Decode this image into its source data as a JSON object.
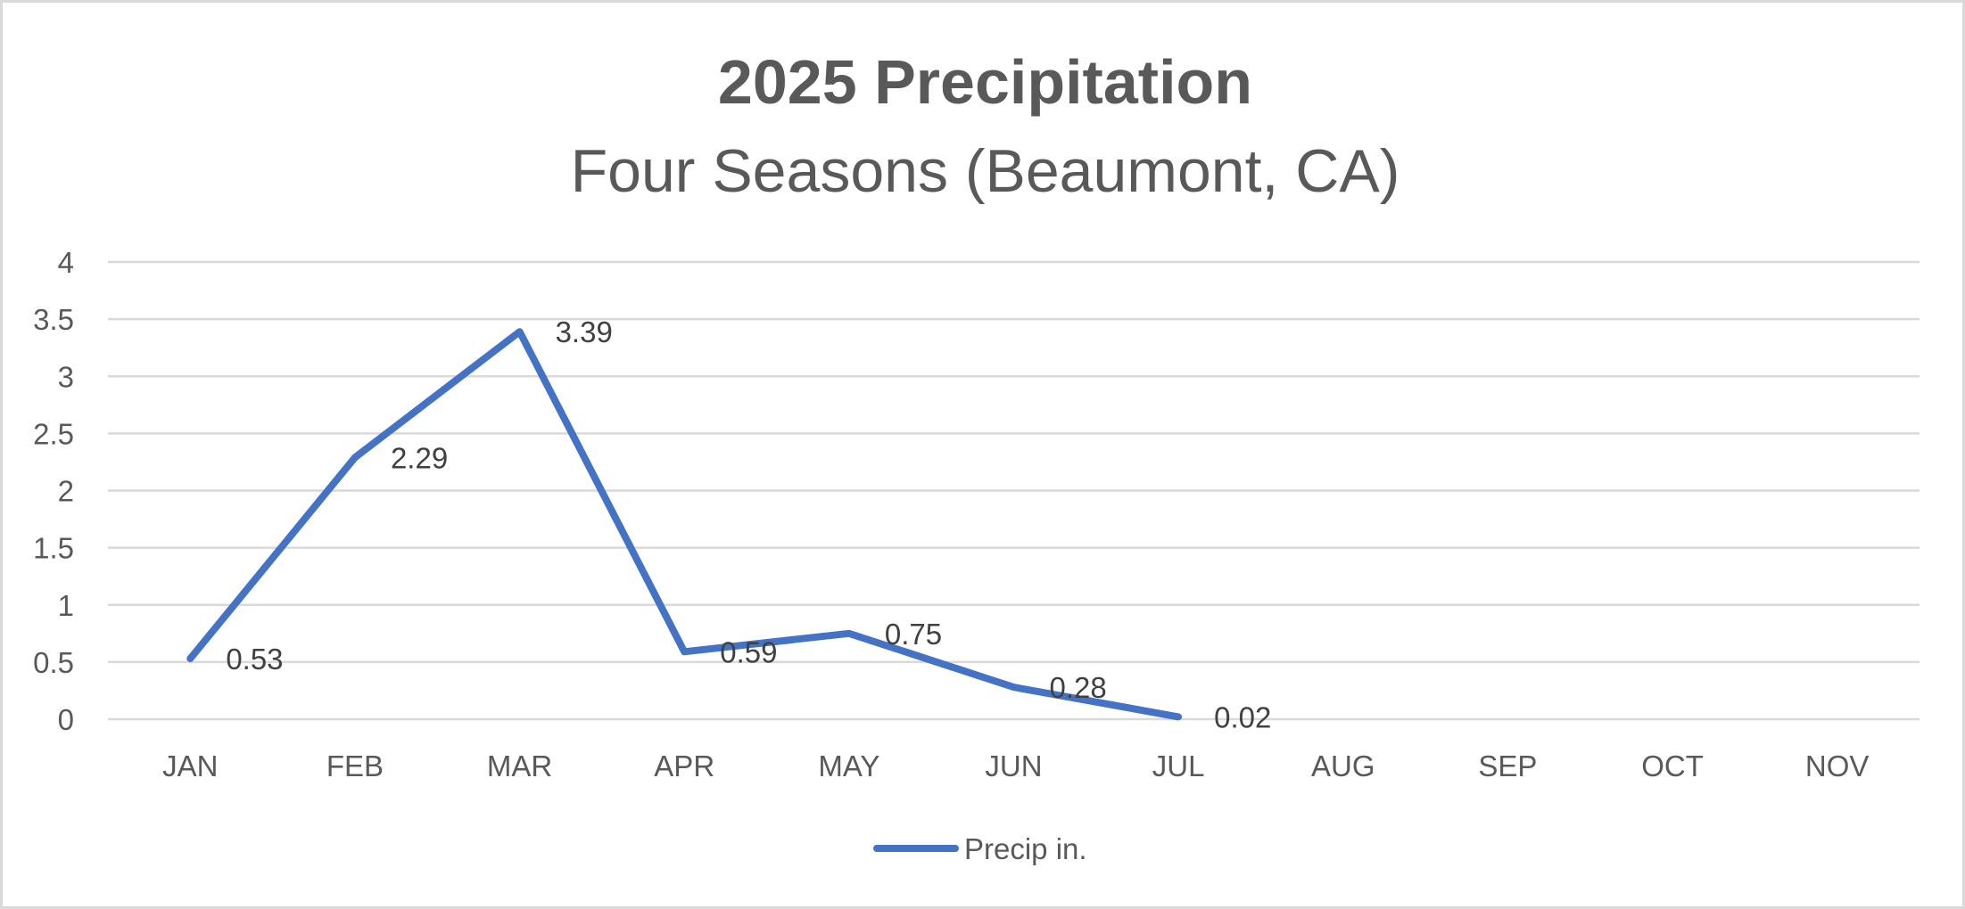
{
  "chart_data": {
    "type": "line",
    "title": "2025 Precipitation",
    "subtitle": "Four Seasons (Beaumont, CA)",
    "xlabel": "",
    "ylabel": "",
    "categories": [
      "JAN",
      "FEB",
      "MAR",
      "APR",
      "MAY",
      "JUN",
      "JUL",
      "AUG",
      "SEP",
      "OCT",
      "NOV"
    ],
    "series": [
      {
        "name": "Precip in.",
        "color": "#4472C4",
        "values": [
          0.53,
          2.29,
          3.39,
          0.59,
          0.75,
          0.28,
          0.02,
          null,
          null,
          null,
          null
        ],
        "data_labels": [
          "0.53",
          "2.29",
          "3.39",
          "0.59",
          "0.75",
          "0.28",
          "0.02"
        ]
      }
    ],
    "ylim": [
      0,
      4
    ],
    "y_ticks": [
      {
        "value": 0,
        "label": "0"
      },
      {
        "value": 0.5,
        "label": "0.5"
      },
      {
        "value": 1,
        "label": "1"
      },
      {
        "value": 1.5,
        "label": "1.5"
      },
      {
        "value": 2,
        "label": "2"
      },
      {
        "value": 2.5,
        "label": "2.5"
      },
      {
        "value": 3,
        "label": "3"
      },
      {
        "value": 3.5,
        "label": "3.5"
      },
      {
        "value": 4,
        "label": "4"
      }
    ],
    "grid": true,
    "legend_position": "bottom",
    "gridline_color": "#d9d9d9"
  }
}
